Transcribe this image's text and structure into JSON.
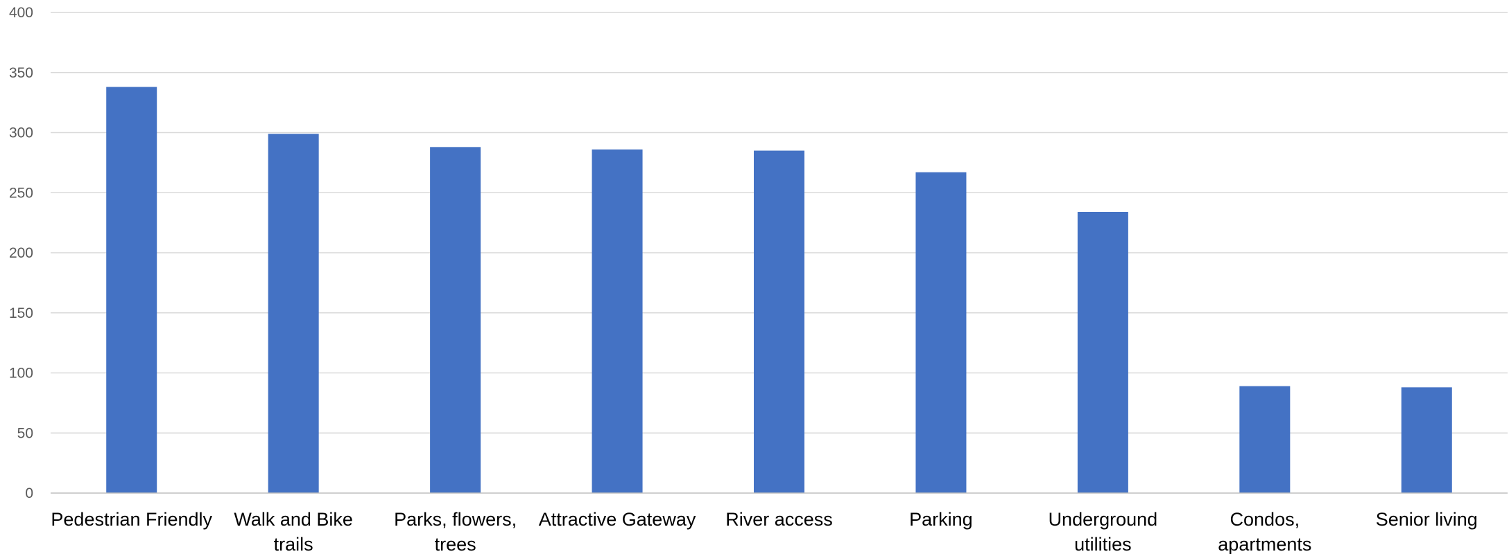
{
  "chart_data": {
    "type": "bar",
    "title": "",
    "xlabel": "",
    "ylabel": "",
    "categories": [
      [
        "Pedestrian Friendly"
      ],
      [
        "Walk and Bike",
        "trails"
      ],
      [
        "Parks, flowers,",
        "trees"
      ],
      [
        "Attractive Gateway"
      ],
      [
        "River access"
      ],
      [
        "Parking"
      ],
      [
        "Underground",
        "utilities"
      ],
      [
        "Condos,",
        "apartments"
      ],
      [
        "Senior living"
      ]
    ],
    "values": [
      338,
      299,
      288,
      286,
      285,
      267,
      234,
      89,
      88
    ],
    "ylim": [
      0,
      400
    ],
    "yticks": [
      "0",
      "50",
      "100",
      "150",
      "200",
      "250",
      "300",
      "350",
      "400"
    ],
    "grid": true,
    "legend": "none",
    "colors": {
      "bar": "#4472c4"
    }
  }
}
